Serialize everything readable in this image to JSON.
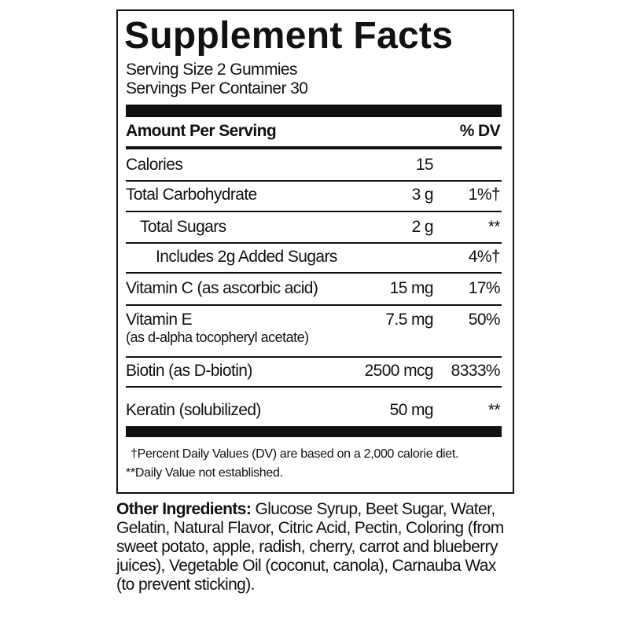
{
  "header": {
    "title": "Supplement Facts",
    "serving_size": "Serving Size 2 Gummies",
    "servings_per_container": "Servings Per Container 30"
  },
  "table": {
    "columns": [
      "Amount Per Serving",
      "% DV"
    ],
    "rows": [
      {
        "name": "Calories",
        "amount": "15"
      },
      {
        "name": "Total Carbohydrate",
        "amount": "3 g",
        "dv": "1%†"
      },
      {
        "name": "Total Sugars",
        "amount": "2 g",
        "dv": "**"
      },
      {
        "name": "Includes 2g Added Sugars",
        "dv": "4%†"
      },
      {
        "name": "Vitamin C (as ascorbic acid)",
        "amount": "15 mg",
        "dv": "17%"
      },
      {
        "name": "Vitamin E",
        "sub": "(as d-alpha tocopheryl acetate)",
        "amount": "7.5 mg",
        "dv": "50%"
      },
      {
        "name": "Biotin (as D-biotin)",
        "amount": "2500 mcg",
        "dv": "8333%"
      },
      {
        "name": "Keratin (solubilized)",
        "amount": "50 mg",
        "dv": "**"
      }
    ]
  },
  "footnotes": [
    "†Percent Daily Values (DV) are based on a 2,000 calorie diet.",
    "**Daily Value not established."
  ],
  "other_ingredients": {
    "label": "Other Ingredients:",
    "text": "Glucose Syrup, Beet Sugar, Water, Gelatin, Natural Flavor, Citric Acid, Pectin, Coloring (from sweet potato, apple, radish, cherry, carrot and blueberry juices), Vegetable Oil (coconut, canola), Carnauba Wax (to prevent sticking)."
  }
}
